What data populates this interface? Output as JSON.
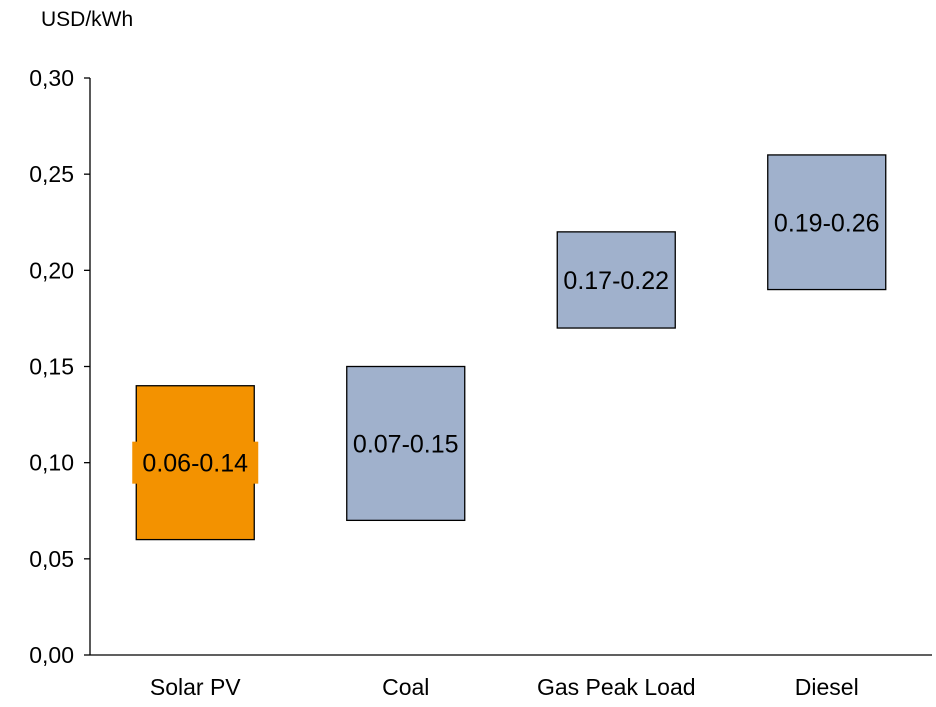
{
  "chart_data": {
    "type": "bar",
    "subtype": "floating-range",
    "unit_label": "USD/kWh",
    "xlabel": "",
    "ylabel": "",
    "ylim": [
      0,
      0.3
    ],
    "yticks": [
      "0,00",
      "0,05",
      "0,10",
      "0,15",
      "0,20",
      "0,25",
      "0,30"
    ],
    "ytick_values": [
      0,
      0.05,
      0.1,
      0.15,
      0.2,
      0.25,
      0.3
    ],
    "grid": false,
    "legend": "none",
    "categories": [
      "Solar PV",
      "Coal",
      "Gas Peak Load",
      "Diesel"
    ],
    "ranges": [
      {
        "low": 0.06,
        "high": 0.14,
        "label": "0.06-0.14",
        "color": "#F39200"
      },
      {
        "low": 0.07,
        "high": 0.15,
        "label": "0.07-0.15",
        "color": "#A0B1CC"
      },
      {
        "low": 0.17,
        "high": 0.22,
        "label": "0.17-0.22",
        "color": "#A0B1CC"
      },
      {
        "low": 0.19,
        "high": 0.26,
        "label": "0.19-0.26",
        "color": "#A0B1CC"
      }
    ],
    "colors": {
      "highlight": "#F39200",
      "default": "#A0B1CC",
      "axis": "#000000"
    }
  }
}
